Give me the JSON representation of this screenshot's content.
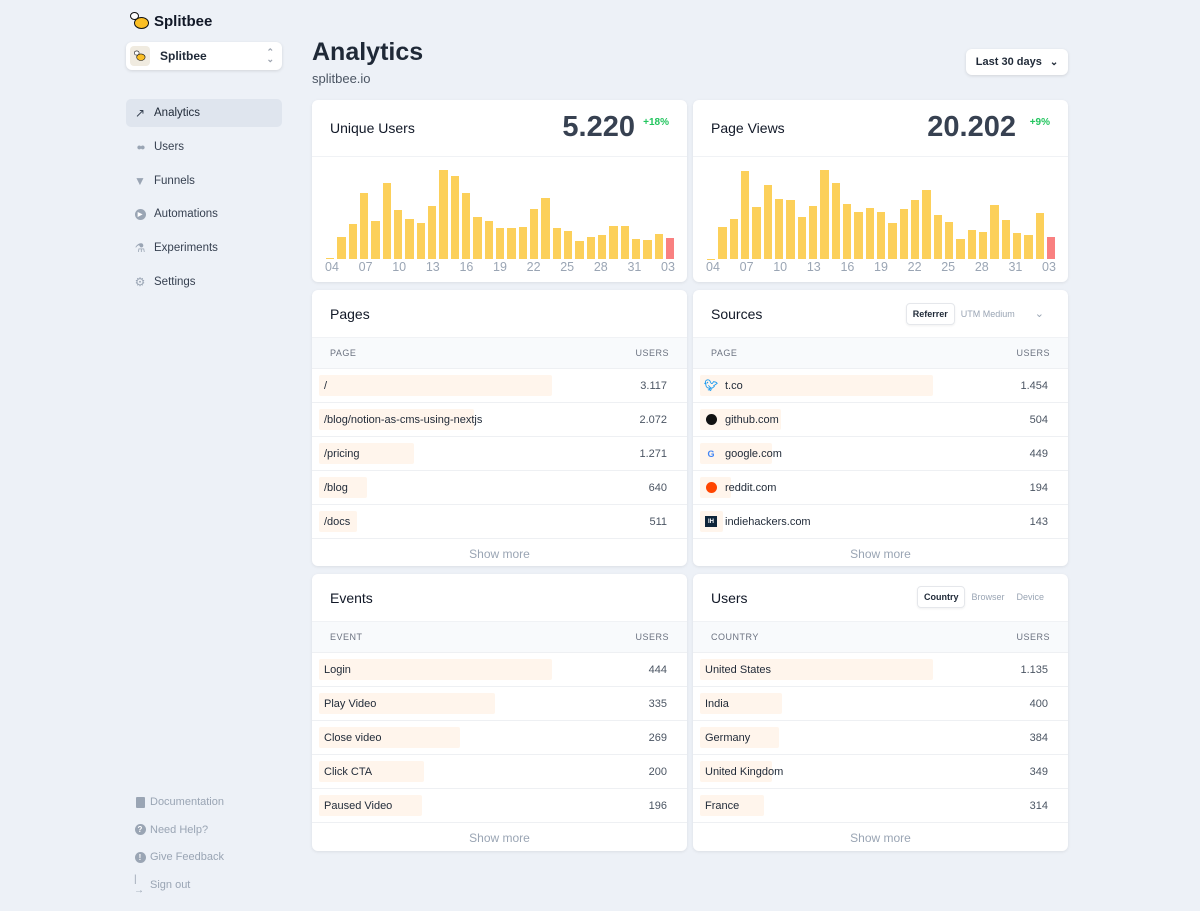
{
  "brand": {
    "name": "Splitbee"
  },
  "project": {
    "name": "Splitbee"
  },
  "nav": [
    {
      "label": "Analytics",
      "icon": "trending-up-icon",
      "active": true
    },
    {
      "label": "Users",
      "icon": "users-icon"
    },
    {
      "label": "Funnels",
      "icon": "funnel-icon"
    },
    {
      "label": "Automations",
      "icon": "play-circle-icon"
    },
    {
      "label": "Experiments",
      "icon": "beaker-icon"
    },
    {
      "label": "Settings",
      "icon": "gear-icon"
    }
  ],
  "footer_nav": [
    {
      "label": "Documentation",
      "icon": "document-icon"
    },
    {
      "label": "Need Help?",
      "icon": "question-circle-icon"
    },
    {
      "label": "Give Feedback",
      "icon": "exclamation-circle-icon"
    },
    {
      "label": "Sign out",
      "icon": "sign-out-icon"
    }
  ],
  "header": {
    "title": "Analytics",
    "subtitle": "splitbee.io",
    "range": "Last 30 days"
  },
  "stats": [
    {
      "label": "Unique Users",
      "value": "5.220",
      "change": "+18%",
      "bars": [
        3,
        53,
        83,
        158,
        90,
        183,
        118,
        96,
        86,
        126,
        213,
        198,
        158,
        100,
        91,
        75,
        75,
        77,
        120,
        145,
        75,
        66,
        42,
        52,
        57,
        78,
        79,
        48,
        45,
        60,
        50
      ],
      "ticks": [
        "04",
        "07",
        "10",
        "13",
        "16",
        "19",
        "22",
        "25",
        "28",
        "31",
        "03"
      ]
    },
    {
      "label": "Page Views",
      "value": "20.202",
      "change": "+9%",
      "bars": [
        1,
        81,
        100,
        221,
        130,
        185,
        151,
        147,
        106,
        133,
        223,
        190,
        138,
        118,
        128,
        118,
        91,
        126,
        148,
        173,
        110,
        93,
        49,
        73,
        67,
        135,
        98,
        64,
        61,
        116,
        56
      ],
      "ticks": [
        "04",
        "07",
        "10",
        "13",
        "16",
        "19",
        "22",
        "25",
        "28",
        "31",
        "03"
      ]
    }
  ],
  "colors": {
    "bar": "#fcd05a",
    "current_bar": "#f98080",
    "positive": "#22c55e",
    "row_fill": "#fff5ec"
  },
  "pages": {
    "title": "Pages",
    "col1": "PAGE",
    "col2": "USERS",
    "more": "Show more",
    "rows": [
      {
        "name": "/",
        "value": "3.117",
        "n": 3117
      },
      {
        "name": "/blog/notion-as-cms-using-nextjs",
        "value": "2.072",
        "n": 2072
      },
      {
        "name": "/pricing",
        "value": "1.271",
        "n": 1271
      },
      {
        "name": "/blog",
        "value": "640",
        "n": 640
      },
      {
        "name": "/docs",
        "value": "511",
        "n": 511
      }
    ]
  },
  "sources": {
    "title": "Sources",
    "tabs": [
      "Referrer",
      "UTM Medium"
    ],
    "col1": "PAGE",
    "col2": "USERS",
    "more": "Show more",
    "rows": [
      {
        "name": "t.co",
        "value": "1.454",
        "n": 1454,
        "icon": "twitter-icon"
      },
      {
        "name": "github.com",
        "value": "504",
        "n": 504,
        "icon": "github-icon"
      },
      {
        "name": "google.com",
        "value": "449",
        "n": 449,
        "icon": "google-icon"
      },
      {
        "name": "reddit.com",
        "value": "194",
        "n": 194,
        "icon": "reddit-icon"
      },
      {
        "name": "indiehackers.com",
        "value": "143",
        "n": 143,
        "icon": "indiehackers-icon"
      }
    ]
  },
  "events": {
    "title": "Events",
    "col1": "EVENT",
    "col2": "USERS",
    "more": "Show more",
    "rows": [
      {
        "name": "Login",
        "value": "444",
        "n": 444
      },
      {
        "name": "Play Video",
        "value": "335",
        "n": 335
      },
      {
        "name": "Close video",
        "value": "269",
        "n": 269
      },
      {
        "name": "Click CTA",
        "value": "200",
        "n": 200
      },
      {
        "name": "Paused Video",
        "value": "196",
        "n": 196
      }
    ]
  },
  "users": {
    "title": "Users",
    "tabs": [
      "Country",
      "Browser",
      "Device"
    ],
    "col1": "COUNTRY",
    "col2": "USERS",
    "more": "Show more",
    "rows": [
      {
        "name": "United States",
        "value": "1.135",
        "n": 1135
      },
      {
        "name": "India",
        "value": "400",
        "n": 400
      },
      {
        "name": "Germany",
        "value": "384",
        "n": 384
      },
      {
        "name": "United Kingdom",
        "value": "349",
        "n": 349
      },
      {
        "name": "France",
        "value": "314",
        "n": 314
      }
    ]
  }
}
